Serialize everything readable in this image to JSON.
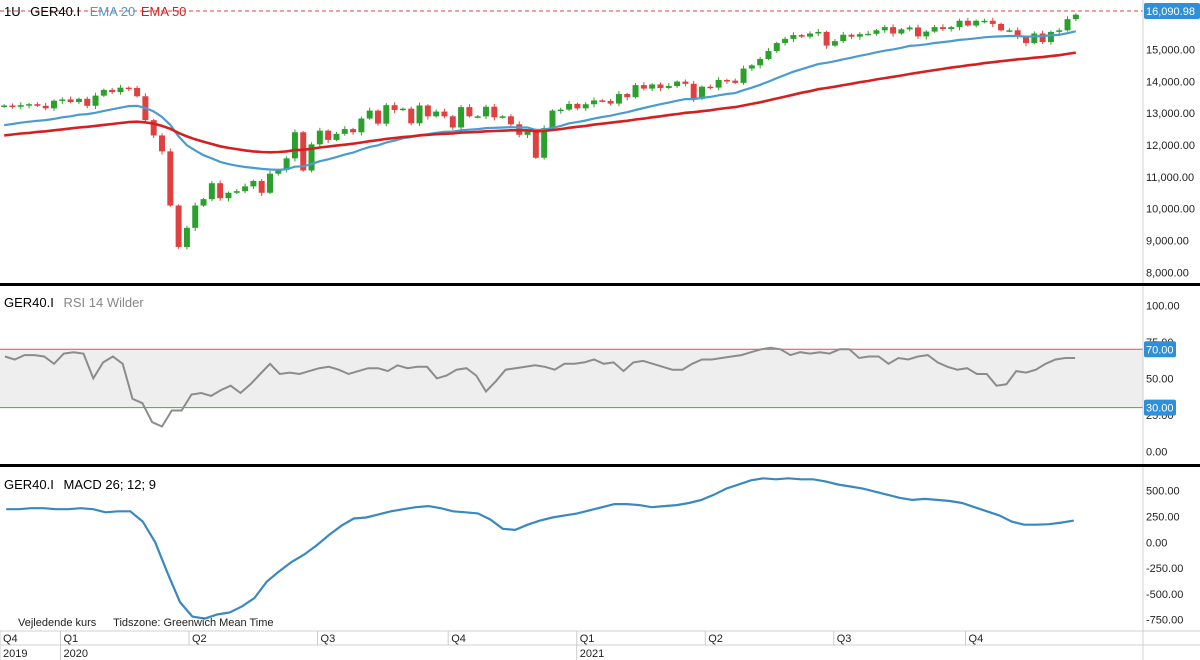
{
  "header": {
    "interval": "1U",
    "symbol": "GER40.I",
    "ema20_label": "EMA 20",
    "ema50_label": "EMA 50",
    "last_price": "16,090.98"
  },
  "rsi_header": {
    "symbol": "GER40.I",
    "label": "RSI 14 Wilder",
    "upper_badge": "70.00",
    "lower_badge": "30.00"
  },
  "macd_header": {
    "symbol": "GER40.I",
    "label": "MACD 26; 12; 9"
  },
  "footnote": {
    "price_note": "Vejledende kurs",
    "timezone_note": "Tidszone: Greenwich Mean Time"
  },
  "colors": {
    "up": "#2ca02c",
    "down": "#e04040",
    "ema20": "#4a9bd0",
    "ema50": "#d42020",
    "rsi_line": "#8c8c8c",
    "rsi_upper": "#e05050",
    "rsi_lower": "#3cb043",
    "macd_line": "#3a88c0",
    "badge": "#2f8fd8"
  },
  "chart_data": [
    {
      "type": "candlestick",
      "title": "GER40.I weekly",
      "ylim": [
        7700,
        16300
      ],
      "yticks": [
        "8,000.00",
        "9,000.00",
        "10,000.00",
        "11,000.00",
        "12,000.00",
        "13,000.00",
        "14,000.00",
        "15,000.00"
      ],
      "ytick_values": [
        8000,
        9000,
        10000,
        11000,
        12000,
        13000,
        14000,
        15000
      ],
      "close": [
        13240,
        13200,
        13250,
        13280,
        13230,
        13150,
        13390,
        13430,
        13350,
        13450,
        13230,
        13550,
        13730,
        13660,
        13800,
        13790,
        13530,
        12780,
        12300,
        11800,
        10100,
        8800,
        9400,
        10100,
        10300,
        10800,
        10330,
        10500,
        10550,
        10700,
        10870,
        10500,
        11100,
        11220,
        11580,
        12400,
        11200,
        12020,
        12450,
        12160,
        12350,
        12500,
        12400,
        12830,
        13080,
        12670,
        13250,
        13100,
        13140,
        12680,
        13240,
        12900,
        13050,
        12900,
        12550,
        13190,
        12900,
        12900,
        13200,
        12870,
        12900,
        12650,
        12320,
        12450,
        11600,
        12530,
        13080,
        13110,
        13290,
        13150,
        13280,
        13400,
        13380,
        13300,
        13600,
        13500,
        13880,
        13770,
        13900,
        13790,
        13850,
        13990,
        13920,
        13450,
        13830,
        13800,
        14040,
        14020,
        13950,
        14400,
        14500,
        14700,
        14950,
        15200,
        15330,
        15450,
        15400,
        15500,
        15550,
        15120,
        15260,
        15460,
        15400,
        15480,
        15490,
        15600,
        15700,
        15500,
        15630,
        15690,
        15410,
        15560,
        15700,
        15640,
        15700,
        15900,
        15750,
        15900,
        15900,
        15800,
        15600,
        15600,
        15400,
        15200,
        15500,
        15230,
        15550,
        15600,
        15950,
        16090
      ],
      "ema20": [
        12620,
        12660,
        12700,
        12730,
        12760,
        12780,
        12820,
        12870,
        12900,
        12950,
        12970,
        13010,
        13070,
        13120,
        13170,
        13220,
        13230,
        13160,
        13050,
        12880,
        12630,
        12270,
        11990,
        11830,
        11680,
        11580,
        11470,
        11400,
        11350,
        11310,
        11280,
        11250,
        11230,
        11220,
        11240,
        11320,
        11330,
        11400,
        11490,
        11550,
        11620,
        11700,
        11760,
        11860,
        11940,
        11990,
        12080,
        12140,
        12210,
        12250,
        12310,
        12340,
        12380,
        12410,
        12420,
        12460,
        12480,
        12500,
        12530,
        12540,
        12550,
        12560,
        12550,
        12550,
        12470,
        12480,
        12540,
        12600,
        12680,
        12720,
        12770,
        12830,
        12880,
        12920,
        12980,
        13030,
        13100,
        13160,
        13220,
        13280,
        13330,
        13390,
        13440,
        13440,
        13480,
        13510,
        13560,
        13600,
        13630,
        13720,
        13800,
        13890,
        13990,
        14100,
        14200,
        14300,
        14380,
        14460,
        14540,
        14580,
        14630,
        14690,
        14740,
        14800,
        14850,
        14910,
        14960,
        15000,
        15050,
        15110,
        15130,
        15160,
        15200,
        15230,
        15260,
        15300,
        15320,
        15350,
        15380,
        15400,
        15410,
        15420,
        15420,
        15400,
        15410,
        15420,
        15440,
        15460,
        15510,
        15570
      ],
      "ema50": [
        12300,
        12330,
        12360,
        12380,
        12410,
        12430,
        12460,
        12490,
        12520,
        12550,
        12570,
        12600,
        12630,
        12660,
        12690,
        12720,
        12730,
        12710,
        12670,
        12600,
        12510,
        12380,
        12270,
        12180,
        12100,
        12030,
        11960,
        11910,
        11870,
        11830,
        11800,
        11780,
        11770,
        11780,
        11800,
        11840,
        11850,
        11880,
        11920,
        11950,
        11980,
        12010,
        12040,
        12080,
        12120,
        12150,
        12190,
        12220,
        12250,
        12270,
        12300,
        12320,
        12340,
        12350,
        12360,
        12390,
        12400,
        12410,
        12430,
        12440,
        12450,
        12460,
        12460,
        12460,
        12430,
        12440,
        12470,
        12500,
        12540,
        12570,
        12600,
        12640,
        12670,
        12700,
        12730,
        12760,
        12800,
        12830,
        12870,
        12900,
        12940,
        12970,
        13010,
        13030,
        13060,
        13090,
        13130,
        13160,
        13190,
        13240,
        13290,
        13340,
        13400,
        13460,
        13520,
        13580,
        13640,
        13690,
        13750,
        13790,
        13830,
        13880,
        13920,
        13970,
        14010,
        14060,
        14100,
        14140,
        14180,
        14230,
        14270,
        14310,
        14350,
        14390,
        14430,
        14460,
        14500,
        14530,
        14570,
        14600,
        14630,
        14660,
        14690,
        14710,
        14740,
        14760,
        14790,
        14820,
        14860,
        14900
      ]
    },
    {
      "type": "line",
      "title": "RSI 14 Wilder",
      "ylim": [
        -8,
        112
      ],
      "yticks": [
        "100.00",
        "75.00",
        "50.00",
        "25.00",
        "0.00"
      ],
      "ytick_values": [
        100,
        75,
        50,
        25,
        0
      ],
      "levels": [
        70,
        30
      ],
      "values": [
        65,
        63,
        66,
        66,
        65,
        60,
        67,
        68,
        67,
        50,
        61,
        65,
        60,
        36,
        33,
        20,
        17,
        28,
        28,
        39,
        40,
        38,
        42,
        45,
        40,
        46,
        53,
        60,
        53,
        54,
        53,
        55,
        57,
        58,
        56,
        53,
        55,
        57,
        57,
        55,
        59,
        57,
        58,
        58,
        50,
        52,
        56,
        57,
        52,
        41,
        48,
        56,
        57,
        58,
        59,
        58,
        56,
        60,
        60,
        61,
        63,
        60,
        61,
        55,
        61,
        62,
        60,
        58,
        56,
        56,
        60,
        63,
        63,
        64,
        65,
        66,
        68,
        70,
        71,
        70,
        66,
        68,
        67,
        68,
        67,
        70,
        70,
        64,
        65,
        65,
        60,
        64,
        63,
        65,
        66,
        61,
        58,
        56,
        57,
        53,
        53,
        45,
        46,
        55,
        54,
        56,
        60,
        63,
        64,
        64
      ],
      "values_note": "approximate"
    },
    {
      "type": "line",
      "title": "MACD 26; 12; 9",
      "ylim": [
        -850,
        700
      ],
      "yticks": [
        "500.00",
        "250.00",
        "0.00",
        "-250.00",
        "-500.00",
        "-750.00"
      ],
      "ytick_values": [
        500,
        250,
        0,
        -250,
        -500,
        -750
      ],
      "values": [
        320,
        320,
        330,
        330,
        320,
        320,
        330,
        320,
        290,
        300,
        300,
        200,
        0,
        -300,
        -580,
        -720,
        -740,
        -700,
        -680,
        -620,
        -540,
        -380,
        -280,
        -190,
        -120,
        -30,
        70,
        160,
        230,
        240,
        270,
        300,
        320,
        340,
        350,
        330,
        300,
        290,
        280,
        220,
        130,
        120,
        170,
        210,
        240,
        260,
        280,
        310,
        340,
        370,
        370,
        360,
        340,
        350,
        360,
        380,
        410,
        460,
        520,
        560,
        600,
        620,
        610,
        620,
        610,
        610,
        590,
        560,
        540,
        520,
        490,
        460,
        430,
        410,
        420,
        410,
        400,
        380,
        340,
        300,
        260,
        200,
        170,
        170,
        175,
        190,
        210
      ],
      "values_note": "approximate"
    }
  ],
  "x_axis": {
    "quarters": [
      {
        "label": "Q4",
        "frac": 0.0
      },
      {
        "label": "Q1",
        "frac": 0.056
      },
      {
        "label": "Q2",
        "frac": 0.175
      },
      {
        "label": "Q3",
        "frac": 0.294
      },
      {
        "label": "Q4",
        "frac": 0.415
      },
      {
        "label": "Q1",
        "frac": 0.534
      },
      {
        "label": "Q2",
        "frac": 0.653
      },
      {
        "label": "Q3",
        "frac": 0.772
      },
      {
        "label": "Q4",
        "frac": 0.894
      }
    ],
    "years": [
      {
        "label": "2019",
        "frac": 0.0
      },
      {
        "label": "2020",
        "frac": 0.056
      },
      {
        "label": "2021",
        "frac": 0.534
      }
    ]
  }
}
